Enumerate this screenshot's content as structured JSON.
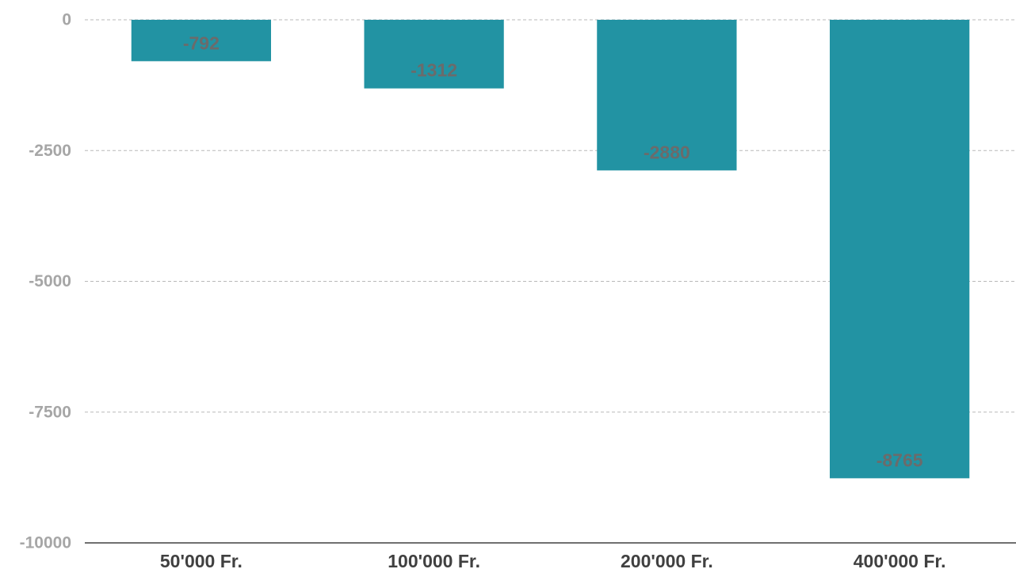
{
  "chart_data": {
    "type": "bar",
    "categories": [
      "50'000 Fr.",
      "100'000 Fr.",
      "200'000 Fr.",
      "400'000 Fr."
    ],
    "values": [
      -792,
      -1312,
      -2880,
      -8765
    ],
    "data_labels": [
      "-792",
      "-1312",
      "-2880",
      "-8765"
    ],
    "yticks": [
      0,
      -2500,
      -5000,
      -7500,
      -10000
    ],
    "ytick_labels": [
      "0",
      "-2500",
      "-5000",
      "-7500",
      "-10000"
    ],
    "ylim": [
      -10000,
      0
    ],
    "grid": true,
    "legend": false,
    "colors": {
      "bar": "#2293a3",
      "grid": "#b8b8b8",
      "axis": "#404040",
      "tick_label": "#a6a6a6",
      "category_label": "#404040",
      "data_label": "#6b6b6b"
    }
  }
}
